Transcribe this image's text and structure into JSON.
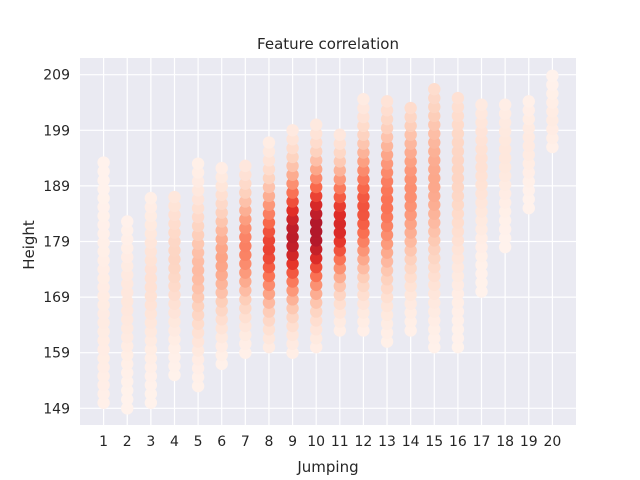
{
  "chart_data": {
    "type": "heatmap",
    "mark": "hexbin",
    "title": "Feature correlation",
    "xlabel": "Jumping",
    "ylabel": "Height",
    "xlim": [
      0,
      21
    ],
    "ylim": [
      146,
      212
    ],
    "x_ticks": [
      1,
      2,
      3,
      4,
      5,
      6,
      7,
      8,
      9,
      10,
      11,
      12,
      13,
      14,
      15,
      16,
      17,
      18,
      19,
      20
    ],
    "y_ticks": [
      149,
      159,
      169,
      179,
      189,
      199,
      209
    ],
    "grid": true,
    "colormap": "Reds",
    "colors": {
      "background": "#eaeaf2",
      "low": "#fff5f0",
      "high": "#b2182b",
      "text": "#262626"
    },
    "columns": [
      {
        "x": 1,
        "ymin": 150,
        "ymax": 194,
        "peak": 165,
        "intensity": 0.05
      },
      {
        "x": 2,
        "ymin": 149,
        "ymax": 184,
        "peak": 168,
        "intensity": 0.08
      },
      {
        "x": 3,
        "ymin": 150,
        "ymax": 188,
        "peak": 172,
        "intensity": 0.12
      },
      {
        "x": 4,
        "ymin": 155,
        "ymax": 188,
        "peak": 176,
        "intensity": 0.2
      },
      {
        "x": 5,
        "ymin": 153,
        "ymax": 193,
        "peak": 174,
        "intensity": 0.32
      },
      {
        "x": 6,
        "ymin": 157,
        "ymax": 193,
        "peak": 176,
        "intensity": 0.42
      },
      {
        "x": 7,
        "ymin": 159,
        "ymax": 194,
        "peak": 178,
        "intensity": 0.55
      },
      {
        "x": 8,
        "ymin": 160,
        "ymax": 198,
        "peak": 178,
        "intensity": 0.75
      },
      {
        "x": 9,
        "ymin": 159,
        "ymax": 199,
        "peak": 180,
        "intensity": 0.95
      },
      {
        "x": 10,
        "ymin": 160,
        "ymax": 201,
        "peak": 181,
        "intensity": 1.0
      },
      {
        "x": 11,
        "ymin": 163,
        "ymax": 199,
        "peak": 182,
        "intensity": 0.85
      },
      {
        "x": 12,
        "ymin": 163,
        "ymax": 205,
        "peak": 185,
        "intensity": 0.7
      },
      {
        "x": 13,
        "ymin": 161,
        "ymax": 205,
        "peak": 186,
        "intensity": 0.6
      },
      {
        "x": 14,
        "ymin": 163,
        "ymax": 203,
        "peak": 188,
        "intensity": 0.5
      },
      {
        "x": 15,
        "ymin": 160,
        "ymax": 207,
        "peak": 190,
        "intensity": 0.4
      },
      {
        "x": 16,
        "ymin": 160,
        "ymax": 206,
        "peak": 192,
        "intensity": 0.2
      },
      {
        "x": 17,
        "ymin": 170,
        "ymax": 204,
        "peak": 193,
        "intensity": 0.12
      },
      {
        "x": 18,
        "ymin": 178,
        "ymax": 205,
        "peak": 195,
        "intensity": 0.08
      },
      {
        "x": 19,
        "ymin": 185,
        "ymax": 205,
        "peak": 197,
        "intensity": 0.06
      },
      {
        "x": 20,
        "ymin": 196,
        "ymax": 210,
        "peak": 201,
        "intensity": 0.05
      }
    ]
  }
}
